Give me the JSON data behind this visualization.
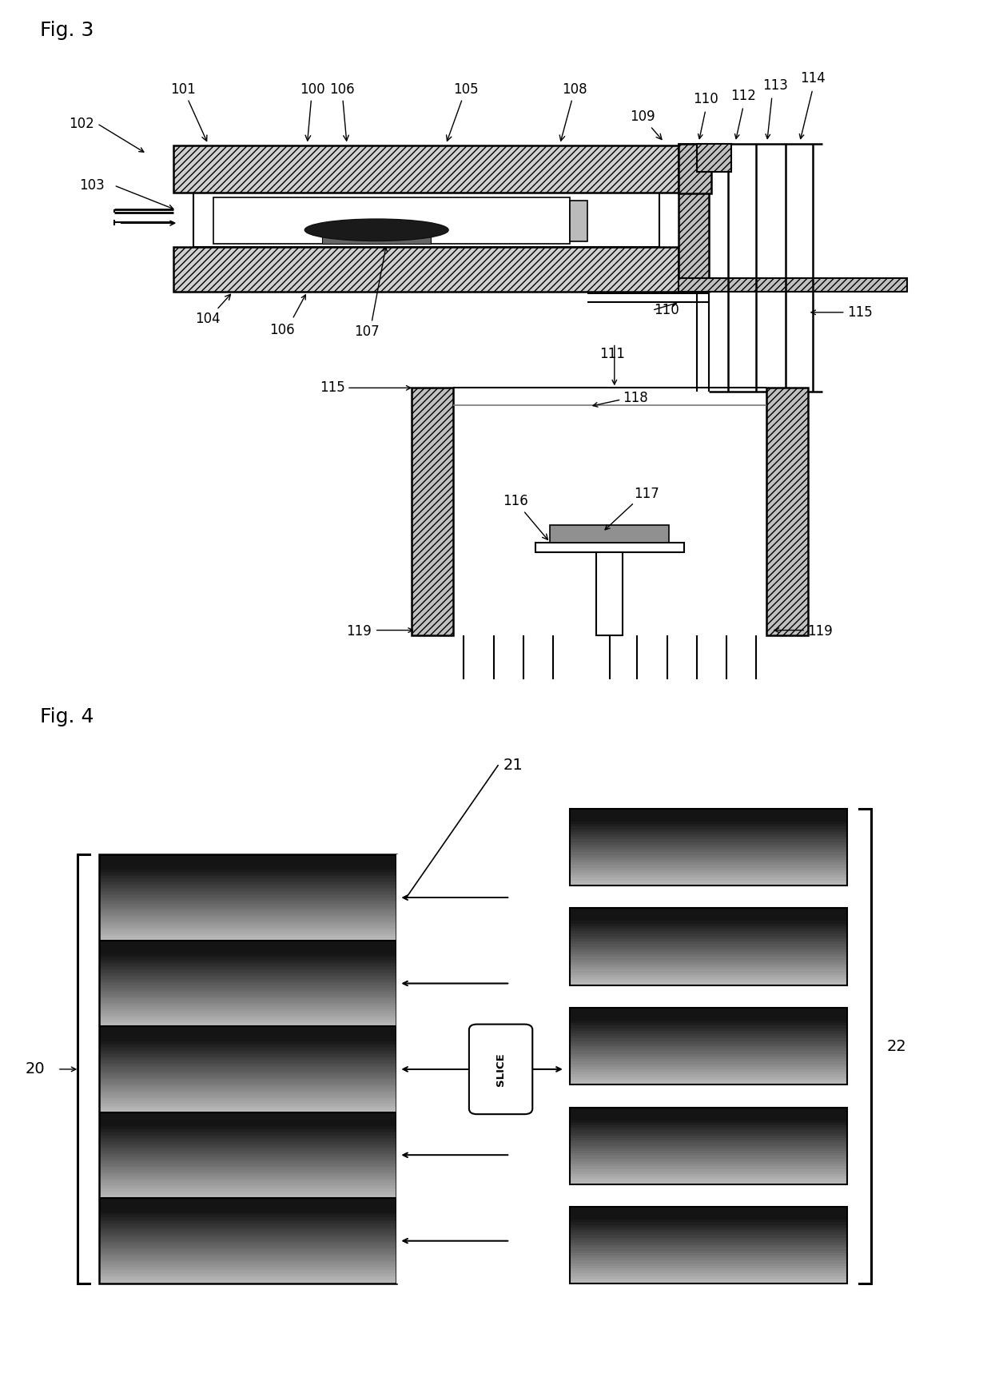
{
  "fig3_title": "Fig. 3",
  "fig4_title": "Fig. 4",
  "bg_color": "#ffffff",
  "line_color": "#000000",
  "label_fontsize": 12,
  "title_fontsize": 18
}
